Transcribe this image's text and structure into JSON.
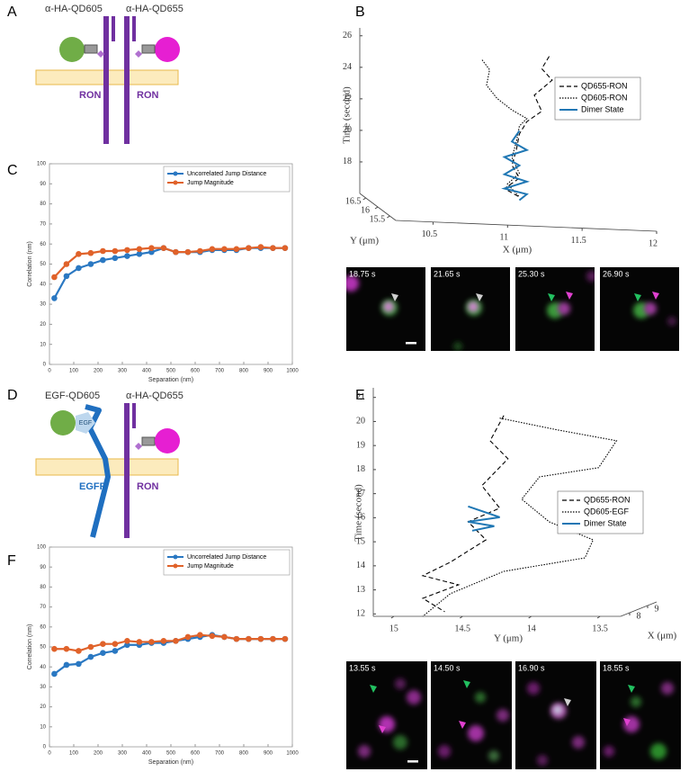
{
  "panel_labels": [
    "A",
    "B",
    "C",
    "D",
    "E",
    "F"
  ],
  "diagram_a": {
    "labels": [
      "α-HA-QD605",
      "α-HA-QD655"
    ],
    "receptor_labels": [
      "RON",
      "RON"
    ]
  },
  "diagram_d": {
    "labels": [
      "EGF-QD605",
      "α-HA-QD655"
    ],
    "ligand": "EGF",
    "receptor_labels": [
      "EGFR",
      "RON"
    ]
  },
  "images_b": [
    "18.75 s",
    "21.65 s",
    "25.30 s",
    "26.90 s"
  ],
  "images_e": [
    "13.55 s",
    "14.50 s",
    "16.90 s",
    "18.55 s"
  ],
  "chart_data": [
    {
      "type": "line",
      "x_label": "Separation (nm)",
      "y_label": "Correlation (nm)",
      "x": [
        20,
        70,
        120,
        170,
        220,
        270,
        320,
        370,
        420,
        470,
        520,
        570,
        620,
        670,
        720,
        770,
        820,
        870,
        920,
        970
      ],
      "series": [
        {
          "name": "Uncorrelated Jump Distance",
          "color": "#2a78c2",
          "values": [
            33,
            44,
            48,
            50,
            52,
            53,
            54,
            55,
            56,
            58,
            56,
            56,
            56,
            57,
            57,
            57,
            58,
            58,
            58,
            58
          ]
        },
        {
          "name": "Jump Magnitude",
          "color": "#e0622a",
          "values": [
            43.5,
            50,
            55,
            55.5,
            56.5,
            56.5,
            57,
            57.5,
            58,
            58,
            56,
            56,
            56.5,
            57.5,
            57.5,
            57.5,
            58,
            58.5,
            58,
            58
          ]
        }
      ],
      "xlim": [
        0,
        1000
      ],
      "xticks": [
        0,
        100,
        200,
        300,
        400,
        500,
        600,
        700,
        800,
        900,
        1000
      ],
      "ylim": [
        0,
        100
      ],
      "yticks": [
        0,
        10,
        20,
        30,
        40,
        50,
        60,
        70,
        80,
        90,
        100
      ],
      "legend": "upper right"
    },
    {
      "type": "line3d",
      "x_label": "X (μm)",
      "y_label": "Y (μm)",
      "z_label": "Time (second)",
      "series": [
        {
          "name": "QD655-RON",
          "color": "#000000",
          "dash": "dashed",
          "x": [
            11.4,
            11.35,
            11.42,
            11.3,
            11.35,
            11.25,
            11.2,
            11.18,
            11.15,
            11.2,
            11.1,
            11.2
          ],
          "y": [
            16,
            16,
            16,
            16,
            16,
            16,
            16,
            16,
            16,
            16,
            16,
            16
          ],
          "z": [
            26,
            25.2,
            24.5,
            23.5,
            22.5,
            21.8,
            21,
            20,
            19,
            18.2,
            17.5,
            17
          ]
        },
        {
          "name": "QD605-RON",
          "color": "#000000",
          "dash": "dotted",
          "x": [
            10.95,
            11.0,
            10.98,
            11.05,
            11.15,
            11.25,
            11.2,
            11.18,
            11.15,
            11.2,
            11.12,
            11.2
          ],
          "y": [
            16,
            16,
            16,
            16,
            16,
            16,
            16,
            16,
            16,
            16,
            16,
            16
          ],
          "z": [
            25.6,
            25,
            24,
            23.2,
            22.5,
            22,
            21.5,
            20.5,
            19.5,
            18.5,
            17.8,
            17
          ]
        },
        {
          "name": "Dimer State",
          "color": "#1f77b4",
          "dash": "solid",
          "x": [
            11.2,
            11.15,
            11.25,
            11.1,
            11.2,
            11.1,
            11.25,
            11.1,
            11.25,
            11.2
          ],
          "y": [
            16,
            16,
            16,
            16,
            16,
            16,
            16,
            16,
            16,
            16
          ],
          "z": [
            21.2,
            20.5,
            20,
            19.5,
            19,
            18.4,
            18,
            17.5,
            17.2,
            16.8
          ]
        }
      ],
      "xlim": [
        10.25,
        12
      ],
      "xticks": [
        10.5,
        11,
        11.5,
        12
      ],
      "ylim": [
        15.25,
        16.75
      ],
      "yticks": [
        15.5,
        16,
        16.5
      ],
      "zlim": [
        16,
        26.5
      ],
      "zticks": [
        18,
        20,
        22,
        24,
        26
      ],
      "legend": "right"
    },
    {
      "type": "line",
      "x_label": "Separation (nm)",
      "y_label": "Correlation (nm)",
      "x": [
        20,
        70,
        120,
        170,
        220,
        270,
        320,
        370,
        420,
        470,
        520,
        570,
        620,
        670,
        720,
        770,
        820,
        870,
        920,
        970
      ],
      "series": [
        {
          "name": "Uncorrelated Jump Distance",
          "color": "#2a78c2",
          "values": [
            36.5,
            41,
            41.5,
            45,
            47,
            48,
            51,
            51,
            52,
            52,
            53,
            54,
            55,
            56,
            55,
            54,
            54,
            54,
            54,
            54
          ]
        },
        {
          "name": "Jump Magnitude",
          "color": "#e0622a",
          "values": [
            49,
            49,
            48,
            50,
            51.5,
            51.5,
            53,
            52.5,
            52.5,
            53,
            53,
            55,
            56,
            55.5,
            55,
            54,
            54,
            54,
            54,
            54
          ]
        }
      ],
      "xlim": [
        0,
        1000
      ],
      "xticks": [
        0,
        100,
        200,
        300,
        400,
        500,
        600,
        700,
        800,
        900,
        1000
      ],
      "ylim": [
        0,
        100
      ],
      "yticks": [
        0,
        10,
        20,
        30,
        40,
        50,
        60,
        70,
        80,
        90,
        100
      ],
      "legend": "upper right"
    },
    {
      "type": "line3d",
      "x_label": "X (μm)",
      "y_label": "Y (μm)",
      "z_label": "Time (second)",
      "series": [
        {
          "name": "QD655-RON",
          "color": "#000000",
          "dash": "dashed",
          "x": [
            7.5,
            7.5,
            7.5,
            7.5,
            7.5,
            7.5,
            7.5,
            7.5,
            7.5,
            7.5,
            7.5,
            7.5
          ],
          "y": [
            14.2,
            14.3,
            14.17,
            14.36,
            14.23,
            14.46,
            14.33,
            14.59,
            14.79,
            14.53,
            14.79,
            14.63
          ],
          "z": [
            20.25,
            19.2,
            18.45,
            17.33,
            16.4,
            15.83,
            15.08,
            14.15,
            13.59,
            13.21,
            12.65,
            12.09
          ]
        },
        {
          "name": "QD605-EGF",
          "color": "#000000",
          "dash": "dotted",
          "x": [
            7.5,
            7.5,
            7.5,
            7.5,
            7.5,
            7.5,
            7.5,
            7.5,
            7.5,
            7.5,
            7.5,
            7.5
          ],
          "y": [
            14.23,
            13.81,
            13.38,
            13.51,
            13.94,
            14.07,
            13.87,
            13.55,
            13.61,
            14.2,
            14.59,
            14.79
          ],
          "z": [
            20.14,
            19.65,
            19.2,
            18.08,
            17.7,
            16.77,
            15.83,
            15.08,
            14.33,
            13.77,
            12.84,
            11.9
          ]
        },
        {
          "name": "Dimer State",
          "color": "#1f77b4",
          "dash": "solid",
          "x": [
            7.5,
            7.5,
            7.5,
            7.5,
            7.5
          ],
          "y": [
            14.46,
            14.23,
            14.46,
            14.27,
            14.43
          ],
          "z": [
            16.47,
            16.02,
            15.83,
            15.65,
            15.46
          ]
        }
      ],
      "xlim": [
        7.5,
        9.5
      ],
      "xticks": [
        8,
        9
      ],
      "ylim": [
        15.15,
        13.35
      ],
      "yticks": [
        15,
        14.5,
        14,
        13.5
      ],
      "zlim": [
        11.9,
        21.4
      ],
      "zticks": [
        12,
        13,
        14,
        15,
        16,
        17,
        18,
        19,
        20,
        21
      ],
      "legend": "right"
    }
  ]
}
